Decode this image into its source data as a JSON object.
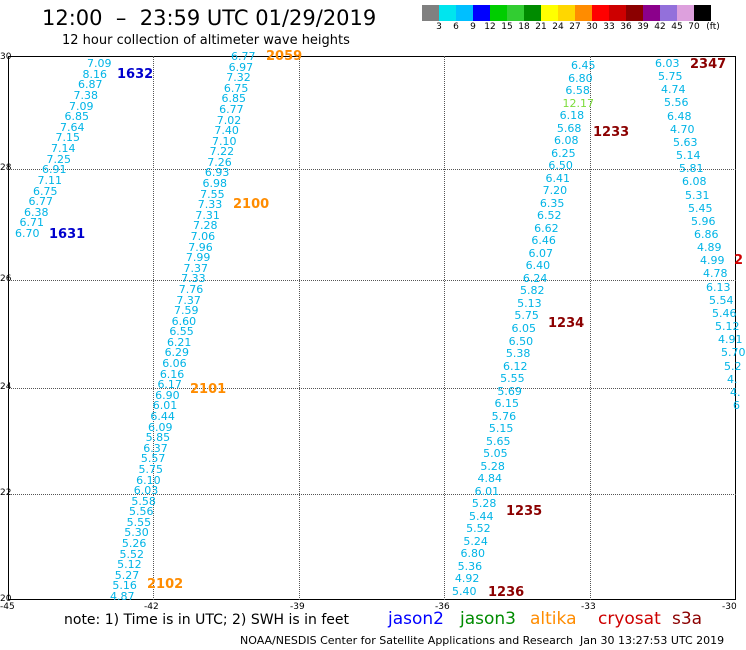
{
  "header": {
    "title": "12:00  –  23:59 UTC 01/29/2019",
    "subtitle": "12 hour collection of altimeter wave heights"
  },
  "scale": {
    "unit": "(ft)",
    "labels": [
      "3",
      "6",
      "9",
      "12",
      "15",
      "18",
      "21",
      "24",
      "27",
      "30",
      "33",
      "36",
      "39",
      "42",
      "45",
      "70"
    ],
    "colors": [
      "#808080",
      "#00e5ee",
      "#00bfff",
      "#0000ff",
      "#00cd00",
      "#32cd32",
      "#008b00",
      "#ffff00",
      "#ffd700",
      "#ff8c00",
      "#ff0000",
      "#cd0000",
      "#8b0000",
      "#8b008b",
      "#9370db",
      "#dda0dd",
      "#000000"
    ]
  },
  "axes": {
    "y_labels": [
      "30",
      "28",
      "26",
      "24",
      "22",
      "20"
    ],
    "x_labels": [
      "-45",
      "-42",
      "-39",
      "-36",
      "-33",
      "-30"
    ]
  },
  "tracks": [
    {
      "id": "track-a",
      "values": [
        "7.09",
        "8.16",
        "6.87",
        "7.38",
        "7.09",
        "6.85",
        "7.64",
        "7.15",
        "7.14",
        "7.25",
        "6.91",
        "7.11",
        "6.75",
        "6.77",
        "6.38",
        "6.71",
        "6.70"
      ],
      "times": [
        {
          "label": "1632",
          "color": "#0000cd"
        },
        {
          "label": "1631",
          "color": "#0000cd"
        }
      ]
    },
    {
      "id": "track-b",
      "values": [
        "6.77",
        "6.97",
        "7.32",
        "6.75",
        "6.85",
        "6.77",
        "7.02",
        "7.40",
        "7.10",
        "7.22",
        "7.26",
        "6.93",
        "6.98",
        "7.55",
        "7.33",
        "7.31",
        "7.28",
        "7.06",
        "7.96",
        "7.99",
        "7.37",
        "7.33",
        "7.76",
        "7.37",
        "7.59",
        "6.60",
        "6.55",
        "6.21",
        "6.29",
        "6.06",
        "6.16",
        "6.17",
        "6.90",
        "6.01",
        "6.44",
        "6.09",
        "5.85",
        "6.37",
        "5.57",
        "5.75",
        "6.10",
        "6.03",
        "5.58",
        "5.56",
        "5.55",
        "5.30",
        "5.26",
        "5.52",
        "5.12",
        "5.27",
        "5.16",
        "4.87"
      ],
      "times": [
        {
          "label": "2059",
          "color": "#ff8c00"
        },
        {
          "label": "2100",
          "color": "#ff8c00"
        },
        {
          "label": "2101",
          "color": "#ff8c00"
        },
        {
          "label": "2102",
          "color": "#ff8c00"
        }
      ]
    },
    {
      "id": "track-c",
      "values": [
        "6.45",
        "6.80",
        "6.58",
        "12.17",
        "6.18",
        "5.68",
        "6.08",
        "6.25",
        "6.50",
        "6.41",
        "7.20",
        "6.35",
        "6.52",
        "6.62",
        "6.46",
        "6.07",
        "6.40",
        "6.24",
        "5.82",
        "5.13",
        "5.75",
        "6.05",
        "6.50",
        "5.38",
        "6.12",
        "5.55",
        "5.69",
        "6.15",
        "5.76",
        "5.15",
        "5.65",
        "5.05",
        "5.28",
        "4.84",
        "6.01",
        "5.28",
        "5.44",
        "5.52",
        "5.24",
        "6.80",
        "5.36",
        "4.92",
        "5.40"
      ],
      "times": [
        {
          "label": "1233",
          "color": "#8b0000"
        },
        {
          "label": "1234",
          "color": "#8b0000"
        },
        {
          "label": "1235",
          "color": "#8b0000"
        },
        {
          "label": "1236",
          "color": "#8b0000"
        }
      ]
    },
    {
      "id": "track-d",
      "values": [
        "6.03",
        "5.75",
        "4.74",
        "5.56",
        "6.48",
        "4.70",
        "5.63",
        "5.14",
        "5.81",
        "6.08",
        "5.31",
        "5.45",
        "5.96",
        "6.86",
        "4.89",
        "4.99",
        "4.78",
        "6.13",
        "5.54",
        "5.46",
        "5.12",
        "4.91",
        "5.70",
        "5.2",
        "4.",
        "4.",
        "6"
      ],
      "times": [
        {
          "label": "2347",
          "color": "#8b0000"
        },
        {
          "label": "2",
          "color": "#cd0000"
        }
      ]
    }
  ],
  "footer": {
    "note": "note:  1) Time is in UTC;  2) SWH is in feet",
    "legend": [
      {
        "label": "jason2",
        "color": "#0000ff"
      },
      {
        "label": "jason3",
        "color": "#008b00"
      },
      {
        "label": "altika",
        "color": "#ff8c00"
      },
      {
        "label": "cryosat",
        "color": "#cd0000"
      },
      {
        "label": "s3a",
        "color": "#8b0000"
      }
    ],
    "credit": "NOAA/NESDIS Center for Satellite Applications and Research",
    "generated": "Jan 30 13:27:53 UTC 2019"
  }
}
